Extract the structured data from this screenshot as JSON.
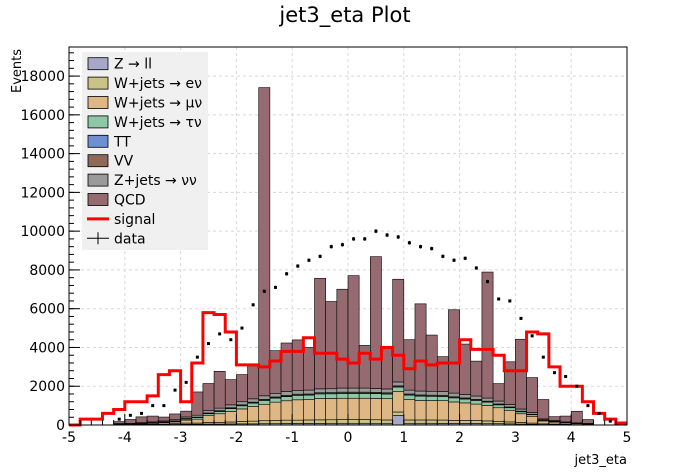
{
  "chart_data": {
    "type": "bar",
    "title": "jet3_eta Plot",
    "xlabel": "jet3_eta",
    "ylabel": "Events",
    "xlim": [
      -5,
      5
    ],
    "ylim": [
      0,
      19500
    ],
    "grid": true,
    "legend_position": "top-left",
    "x_ticks": [
      "-5",
      "-4",
      "-3",
      "-2",
      "-1",
      "0",
      "1",
      "2",
      "3",
      "4",
      "5"
    ],
    "y_ticks": [
      "0",
      "2000",
      "4000",
      "6000",
      "8000",
      "10000",
      "12000",
      "14000",
      "16000",
      "18000"
    ],
    "bins": {
      "start": -5.0,
      "width": 0.2,
      "count": 50
    },
    "stack": [
      {
        "name": "Z → ll",
        "color": "#a7a7c9",
        "values": [
          0,
          0,
          0,
          0,
          10,
          10,
          15,
          20,
          20,
          30,
          40,
          40,
          50,
          50,
          55,
          60,
          60,
          70,
          70,
          80,
          80,
          80,
          85,
          90,
          90,
          90,
          90,
          90,
          90,
          500,
          90,
          90,
          90,
          85,
          80,
          80,
          80,
          70,
          70,
          60,
          50,
          40,
          20,
          20,
          15,
          10,
          10,
          0,
          0,
          0
        ]
      },
      {
        "name": "W+jets → eν",
        "color": "#cbc285",
        "values": [
          0,
          0,
          0,
          0,
          10,
          10,
          20,
          20,
          30,
          40,
          60,
          60,
          80,
          80,
          100,
          120,
          140,
          150,
          160,
          170,
          170,
          180,
          180,
          180,
          190,
          190,
          190,
          180,
          170,
          170,
          170,
          170,
          170,
          170,
          160,
          160,
          150,
          140,
          120,
          100,
          80,
          60,
          40,
          30,
          20,
          10,
          10,
          0,
          0,
          0
        ]
      },
      {
        "name": "W+jets → μν",
        "color": "#dfb784",
        "values": [
          0,
          0,
          0,
          0,
          20,
          30,
          40,
          50,
          70,
          90,
          150,
          200,
          350,
          450,
          550,
          650,
          750,
          850,
          950,
          1000,
          1050,
          1050,
          1100,
          1100,
          1100,
          1100,
          1100,
          1100,
          1100,
          1050,
          1050,
          1000,
          1000,
          1000,
          950,
          900,
          850,
          800,
          700,
          600,
          450,
          350,
          150,
          100,
          70,
          50,
          30,
          0,
          0,
          0
        ]
      },
      {
        "name": "W+jets → τν",
        "color": "#8dc7a6",
        "values": [
          0,
          0,
          0,
          0,
          10,
          10,
          15,
          20,
          30,
          40,
          60,
          80,
          100,
          120,
          140,
          160,
          180,
          200,
          210,
          220,
          230,
          230,
          240,
          240,
          250,
          250,
          250,
          250,
          240,
          240,
          230,
          230,
          220,
          220,
          210,
          200,
          190,
          170,
          150,
          130,
          100,
          80,
          40,
          30,
          20,
          15,
          10,
          0,
          0,
          0
        ]
      },
      {
        "name": "TT",
        "color": "#6e8fd1",
        "values": [
          0,
          0,
          0,
          0,
          0,
          0,
          0,
          0,
          0,
          0,
          5,
          5,
          10,
          10,
          10,
          10,
          10,
          10,
          10,
          10,
          10,
          10,
          10,
          10,
          10,
          10,
          10,
          10,
          10,
          10,
          10,
          10,
          10,
          10,
          10,
          10,
          10,
          10,
          10,
          10,
          10,
          5,
          5,
          0,
          0,
          0,
          0,
          0,
          0,
          0
        ]
      },
      {
        "name": "VV",
        "color": "#8e6a59",
        "values": [
          0,
          0,
          0,
          0,
          5,
          5,
          5,
          10,
          10,
          10,
          20,
          20,
          30,
          30,
          35,
          40,
          40,
          45,
          45,
          50,
          50,
          50,
          50,
          50,
          55,
          55,
          55,
          55,
          50,
          50,
          50,
          50,
          50,
          50,
          45,
          45,
          45,
          40,
          35,
          30,
          25,
          20,
          10,
          10,
          5,
          5,
          5,
          0,
          0,
          0
        ]
      },
      {
        "name": "Z+jets → νν",
        "color": "#9a9a9a",
        "values": [
          0,
          0,
          0,
          0,
          20,
          20,
          25,
          40,
          50,
          60,
          80,
          100,
          120,
          130,
          150,
          160,
          170,
          180,
          190,
          200,
          200,
          200,
          200,
          200,
          210,
          210,
          210,
          200,
          200,
          200,
          200,
          200,
          200,
          190,
          190,
          180,
          170,
          160,
          150,
          130,
          110,
          90,
          50,
          40,
          30,
          20,
          15,
          0,
          0,
          0
        ]
      },
      {
        "name": "QCD",
        "color": "#956a70",
        "values": [
          0,
          0,
          0,
          0,
          100,
          200,
          300,
          300,
          200,
          300,
          300,
          1200,
          1400,
          1900,
          1300,
          1400,
          1700,
          15900,
          2200,
          2500,
          2600,
          2200,
          5700,
          4500,
          5100,
          5800,
          2200,
          6800,
          2200,
          5300,
          2600,
          4500,
          2900,
          1800,
          4300,
          2600,
          1800,
          6500,
          900,
          2200,
          3600,
          1800,
          1000,
          200,
          300,
          600,
          200,
          0,
          0,
          0
        ]
      }
    ],
    "signal": {
      "name": "signal",
      "color": "#ff0000",
      "values": [
        0,
        300,
        300,
        600,
        800,
        1200,
        1200,
        1500,
        2600,
        2800,
        1200,
        3200,
        5800,
        5700,
        4800,
        3100,
        3100,
        3000,
        3300,
        3800,
        3800,
        4500,
        3700,
        3700,
        3400,
        3200,
        3700,
        3400,
        4000,
        3600,
        2900,
        3300,
        3100,
        3200,
        3200,
        4400,
        3900,
        3900,
        3600,
        2800,
        2800,
        4800,
        4700,
        3000,
        2000,
        2000,
        1200,
        600,
        300,
        100
      ]
    },
    "data": {
      "name": "data",
      "values": [
        0,
        0,
        0,
        0,
        300,
        500,
        600,
        1000,
        1000,
        1800,
        2200,
        3500,
        4200,
        4700,
        4400,
        5000,
        6200,
        6900,
        7100,
        7800,
        8200,
        8500,
        8700,
        9200,
        9300,
        9600,
        9600,
        10000,
        9800,
        9700,
        9400,
        9200,
        9100,
        8700,
        8500,
        8600,
        8100,
        7400,
        6500,
        6400,
        5500,
        4600,
        3500,
        2700,
        2500,
        2000,
        1000,
        600,
        200,
        0
      ]
    },
    "legend": [
      "Z → ll",
      "W+jets → eν",
      "W+jets → μν",
      "W+jets → τν",
      "TT",
      "VV",
      "Z+jets → νν",
      "QCD",
      "signal",
      "data"
    ]
  }
}
